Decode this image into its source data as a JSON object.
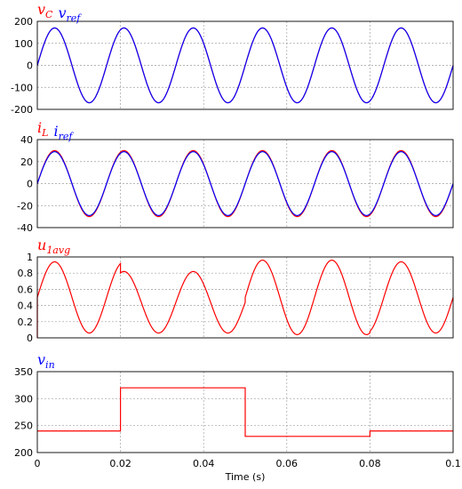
{
  "chart_data": [
    {
      "type": "line",
      "xlim": [
        0,
        0.1
      ],
      "ylim": [
        -200,
        200
      ],
      "yticks": [
        200,
        100,
        0,
        -100,
        -200
      ],
      "grid": true,
      "legend": [
        {
          "label": "v_C",
          "color": "#ff0000",
          "main": "v",
          "sub": "C"
        },
        {
          "label": "v_ref",
          "color": "#0000ff",
          "main": "v",
          "sub": "ref"
        }
      ],
      "series": [
        {
          "name": "v_C",
          "color": "#ff0000",
          "shape": "sine",
          "amplitude": 170,
          "frequency": 60,
          "offset": 0
        },
        {
          "name": "v_ref",
          "color": "#0000ff",
          "shape": "sine",
          "amplitude": 170,
          "frequency": 60,
          "offset": 0
        }
      ]
    },
    {
      "type": "line",
      "xlim": [
        0,
        0.1
      ],
      "ylim": [
        -40,
        40
      ],
      "yticks": [
        40,
        20,
        0,
        -20,
        -40
      ],
      "grid": true,
      "legend": [
        {
          "label": "i_L",
          "color": "#ff0000",
          "main": "i",
          "sub": "L"
        },
        {
          "label": "i_ref",
          "color": "#0000ff",
          "main": "i",
          "sub": "ref"
        }
      ],
      "series": [
        {
          "name": "i_L",
          "color": "#ff0000",
          "shape": "sine",
          "amplitude": 30,
          "frequency": 60,
          "offset": 0
        },
        {
          "name": "i_ref",
          "color": "#0000ff",
          "shape": "sine",
          "amplitude": 29,
          "frequency": 60,
          "offset": 0
        }
      ]
    },
    {
      "type": "line",
      "xlim": [
        0,
        0.1
      ],
      "ylim": [
        0,
        1
      ],
      "yticks": [
        1,
        0.8,
        0.6,
        0.4,
        0.2,
        0
      ],
      "grid": true,
      "legend": [
        {
          "label": "u_1avg",
          "color": "#ff0000",
          "main": "u",
          "sub": "1avg"
        }
      ],
      "series": [
        {
          "name": "u_1avg",
          "color": "#ff0000",
          "shape": "duty",
          "frequency": 60,
          "segments": [
            {
              "t0": 0.0,
              "t1": 0.02,
              "mean": 0.5,
              "amp": 0.44
            },
            {
              "t0": 0.02,
              "t1": 0.05,
              "mean": 0.44,
              "amp": 0.38
            },
            {
              "t0": 0.05,
              "t1": 0.08,
              "mean": 0.5,
              "amp": 0.46
            },
            {
              "t0": 0.08,
              "t1": 0.1,
              "mean": 0.5,
              "amp": 0.44
            }
          ],
          "start_value": 0.0
        }
      ]
    },
    {
      "type": "line",
      "xlim": [
        0,
        0.1
      ],
      "ylim": [
        200,
        350
      ],
      "yticks": [
        350,
        300,
        250,
        200
      ],
      "xticks": [
        "0",
        "0.02",
        "0.04",
        "0.06",
        "0.08",
        "0.1"
      ],
      "xtick_values": [
        0,
        0.02,
        0.04,
        0.06,
        0.08,
        0.1
      ],
      "xlabel": "Time (s)",
      "grid": true,
      "legend": [
        {
          "label": "v_in",
          "color": "#0000ff",
          "main": "v",
          "sub": "in"
        }
      ],
      "series": [
        {
          "name": "v_in",
          "color": "#ff0000",
          "shape": "step",
          "x": [
            0,
            0.02,
            0.02,
            0.05,
            0.05,
            0.08,
            0.08,
            0.1
          ],
          "y": [
            240,
            240,
            320,
            320,
            230,
            230,
            240,
            240
          ]
        }
      ]
    }
  ]
}
